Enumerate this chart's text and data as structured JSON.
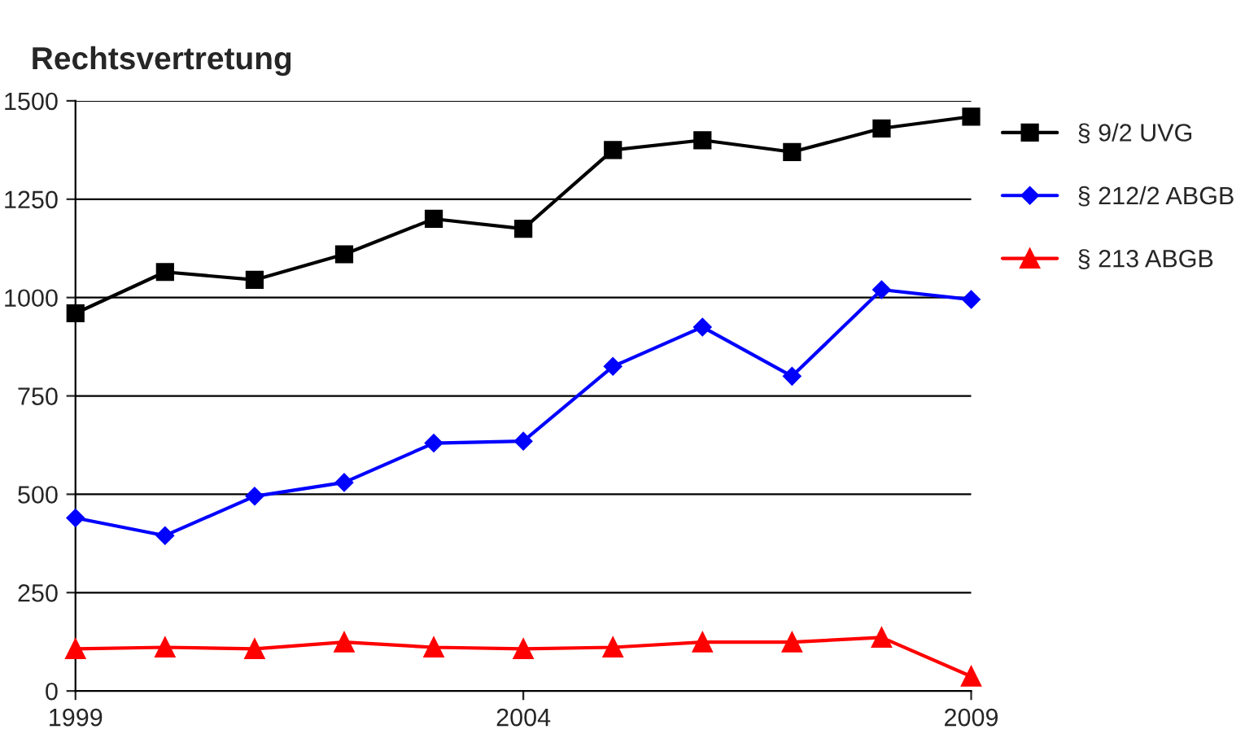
{
  "chart_data": {
    "type": "line",
    "title": "Rechtsvertretung",
    "x": [
      1999,
      2000,
      2001,
      2002,
      2003,
      2004,
      2005,
      2006,
      2007,
      2008,
      2009
    ],
    "series": [
      {
        "name": "§ 9/2 UVG",
        "color": "#000000",
        "marker": "square",
        "values": [
          960,
          1065,
          1045,
          1110,
          1200,
          1175,
          1375,
          1400,
          1370,
          1430,
          1460
        ]
      },
      {
        "name": "§ 212/2 ABGB",
        "color": "#0000ff",
        "marker": "diamond",
        "values": [
          440,
          395,
          495,
          530,
          630,
          635,
          825,
          925,
          800,
          1020,
          995
        ]
      },
      {
        "name": "§ 213 ABGB",
        "color": "#ff0000",
        "marker": "triangle",
        "values": [
          107,
          111,
          107,
          124,
          111,
          107,
          111,
          124,
          124,
          136,
          37
        ]
      }
    ],
    "xlim": [
      1999,
      2009
    ],
    "xticks": [
      1999,
      2004,
      2009
    ],
    "ylim": [
      0,
      1500
    ],
    "yticks": [
      0,
      250,
      500,
      750,
      1000,
      1250,
      1500
    ],
    "grid": "y",
    "legend": "right",
    "line_style": "solid"
  }
}
